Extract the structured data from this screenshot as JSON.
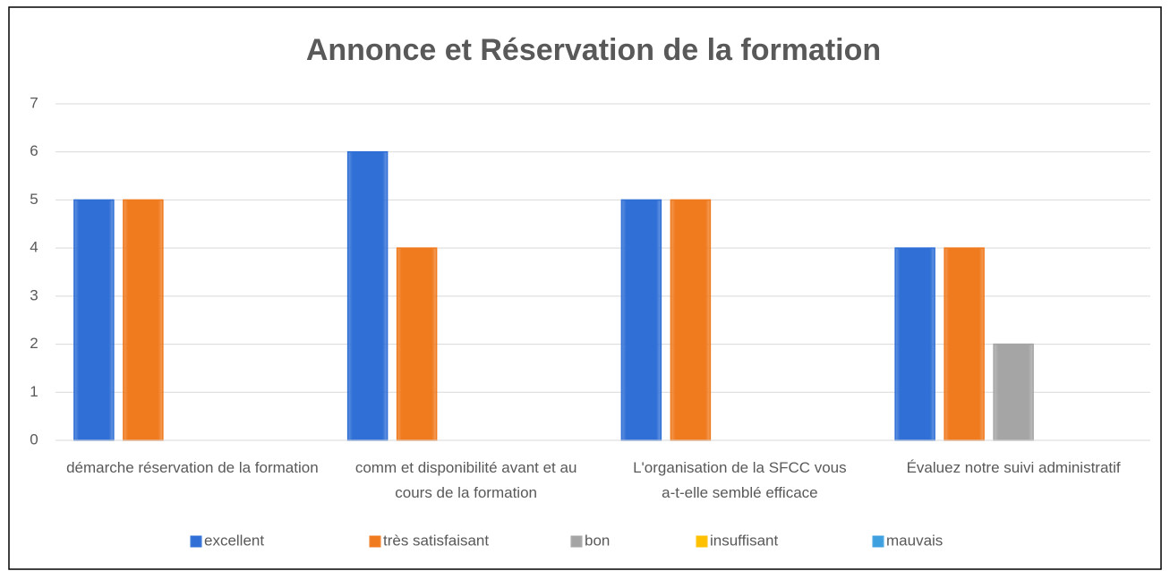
{
  "chart_data": {
    "type": "bar",
    "title": "Annonce et Réservation de la formation",
    "categories": [
      "démarche réservation de la formation",
      "comm et disponibilité avant et au cours de la formation",
      "L'organisation de la SFCC vous a-t-elle semblé efficace",
      "Évaluez notre suivi administratif"
    ],
    "series": [
      {
        "name": "excellent",
        "color": "#2f6fd6",
        "values": [
          5,
          6,
          5,
          4
        ]
      },
      {
        "name": "très satisfaisant",
        "color": "#f07a1e",
        "values": [
          5,
          4,
          5,
          4
        ]
      },
      {
        "name": "bon",
        "color": "#a5a5a5",
        "values": [
          0,
          0,
          0,
          2
        ]
      },
      {
        "name": "insuffisant",
        "color": "#ffc000",
        "values": [
          0,
          0,
          0,
          0
        ]
      },
      {
        "name": "mauvais",
        "color": "#3fa0e0",
        "values": [
          0,
          0,
          0,
          0
        ]
      }
    ],
    "ylim": [
      0,
      7
    ],
    "yticks": [
      0,
      1,
      2,
      3,
      4,
      5,
      6,
      7
    ],
    "grid": true,
    "legend": "bottom"
  }
}
